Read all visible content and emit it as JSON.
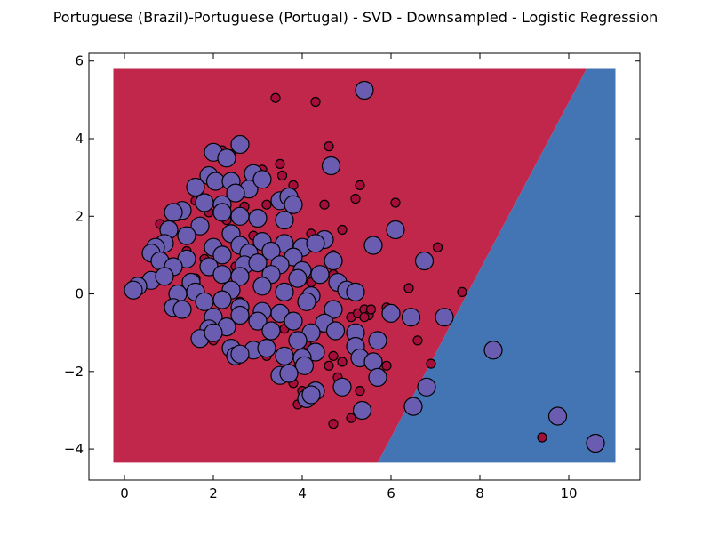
{
  "chart_data": {
    "type": "scatter",
    "title": "Portuguese (Brazil)-Portuguese (Portugal) - SVD - Downsampled - Logistic Regression",
    "xlabel": "",
    "ylabel": "",
    "xlim": [
      -0.8,
      11.6
    ],
    "ylim": [
      -4.8,
      6.2
    ],
    "xticks": [
      "0",
      "2",
      "4",
      "6",
      "8",
      "10"
    ],
    "yticks": [
      "−4",
      "−2",
      "0",
      "2",
      "4",
      "6"
    ],
    "grid": false,
    "colors": {
      "region_red": "#c0274a",
      "region_blue": "#4374b3",
      "point_small": "#a50e3a",
      "point_large": "#6a5cb0"
    },
    "decision_region": {
      "x_range": [
        -0.25,
        11.05
      ],
      "y_range": [
        -4.35,
        5.8
      ],
      "boundary_top_x": 10.4,
      "boundary_bottom_x": 5.7
    },
    "series": [
      {
        "class": "small-red",
        "points": [
          [
            3.4,
            5.05
          ],
          [
            4.3,
            4.95
          ],
          [
            4.6,
            3.8
          ],
          [
            3.1,
            3.2
          ],
          [
            2.2,
            3.7
          ],
          [
            2.4,
            3.6
          ],
          [
            3.5,
            3.35
          ],
          [
            3.55,
            3.05
          ],
          [
            3.8,
            2.8
          ],
          [
            5.3,
            2.8
          ],
          [
            4.5,
            2.3
          ],
          [
            6.1,
            2.35
          ],
          [
            5.2,
            2.45
          ],
          [
            3.2,
            2.3
          ],
          [
            2.7,
            2.25
          ],
          [
            1.9,
            2.1
          ],
          [
            1.6,
            2.4
          ],
          [
            1.2,
            2.0
          ],
          [
            0.8,
            1.8
          ],
          [
            4.2,
            1.55
          ],
          [
            4.9,
            1.65
          ],
          [
            4.7,
            1.0
          ],
          [
            0.7,
            1.0
          ],
          [
            1.8,
            0.9
          ],
          [
            1.9,
            0.6
          ],
          [
            2.5,
            0.7
          ],
          [
            1.6,
            0.4
          ],
          [
            0.6,
            0.45
          ],
          [
            4.2,
            0.3
          ],
          [
            4.7,
            0.5
          ],
          [
            6.4,
            0.15
          ],
          [
            7.05,
            1.2
          ],
          [
            7.6,
            0.05
          ],
          [
            5.1,
            -0.6
          ],
          [
            5.25,
            -0.5
          ],
          [
            5.4,
            -0.4
          ],
          [
            5.5,
            -0.55
          ],
          [
            5.55,
            -0.4
          ],
          [
            5.9,
            -0.35
          ],
          [
            5.4,
            -0.6
          ],
          [
            5.2,
            -0.9
          ],
          [
            6.6,
            -1.2
          ],
          [
            6.9,
            -1.8
          ],
          [
            5.9,
            -1.85
          ],
          [
            5.3,
            -1.5
          ],
          [
            4.7,
            -1.6
          ],
          [
            4.9,
            -1.75
          ],
          [
            4.6,
            -1.85
          ],
          [
            4.8,
            -2.15
          ],
          [
            3.8,
            -2.3
          ],
          [
            4.0,
            -2.5
          ],
          [
            5.3,
            -2.5
          ],
          [
            3.9,
            -2.85
          ],
          [
            5.1,
            -3.2
          ],
          [
            4.7,
            -3.35
          ],
          [
            9.4,
            -3.7
          ],
          [
            2.1,
            -0.8
          ],
          [
            1.3,
            -0.3
          ],
          [
            2.6,
            -0.2
          ],
          [
            3.0,
            0.2
          ],
          [
            3.6,
            -0.9
          ],
          [
            4.1,
            -1.3
          ],
          [
            2.9,
            1.5
          ],
          [
            2.3,
            1.9
          ],
          [
            3.4,
            0.9
          ],
          [
            1.4,
            1.1
          ],
          [
            2.0,
            -1.2
          ],
          [
            3.2,
            -1.6
          ],
          [
            3.9,
            -1.9
          ],
          [
            4.4,
            -0.9
          ]
        ]
      },
      {
        "class": "large-purple",
        "points": [
          [
            5.4,
            5.25
          ],
          [
            2.6,
            3.85
          ],
          [
            2.0,
            3.65
          ],
          [
            2.3,
            3.5
          ],
          [
            1.9,
            3.05
          ],
          [
            2.9,
            3.1
          ],
          [
            2.05,
            2.9
          ],
          [
            2.4,
            2.9
          ],
          [
            1.6,
            2.75
          ],
          [
            2.8,
            2.7
          ],
          [
            3.1,
            2.95
          ],
          [
            4.65,
            3.3
          ],
          [
            2.5,
            2.6
          ],
          [
            3.5,
            2.4
          ],
          [
            3.7,
            2.5
          ],
          [
            3.8,
            2.3
          ],
          [
            2.2,
            2.3
          ],
          [
            1.8,
            2.35
          ],
          [
            2.2,
            2.1
          ],
          [
            1.3,
            2.15
          ],
          [
            1.1,
            2.1
          ],
          [
            2.6,
            2.0
          ],
          [
            3.0,
            1.95
          ],
          [
            3.6,
            1.9
          ],
          [
            6.1,
            1.65
          ],
          [
            5.6,
            1.25
          ],
          [
            1.0,
            1.65
          ],
          [
            1.7,
            1.75
          ],
          [
            1.4,
            1.5
          ],
          [
            2.4,
            1.55
          ],
          [
            3.1,
            1.35
          ],
          [
            3.6,
            1.3
          ],
          [
            4.0,
            1.2
          ],
          [
            4.5,
            1.4
          ],
          [
            4.3,
            1.3
          ],
          [
            0.9,
            1.3
          ],
          [
            0.7,
            1.2
          ],
          [
            2.0,
            1.2
          ],
          [
            2.6,
            1.25
          ],
          [
            3.3,
            1.1
          ],
          [
            0.6,
            1.05
          ],
          [
            1.4,
            0.9
          ],
          [
            2.2,
            1.0
          ],
          [
            2.8,
            1.05
          ],
          [
            3.8,
            0.95
          ],
          [
            4.7,
            0.85
          ],
          [
            6.75,
            0.85
          ],
          [
            0.8,
            0.85
          ],
          [
            1.1,
            0.7
          ],
          [
            1.9,
            0.7
          ],
          [
            2.7,
            0.75
          ],
          [
            3.0,
            0.8
          ],
          [
            3.5,
            0.75
          ],
          [
            4.0,
            0.6
          ],
          [
            4.4,
            0.5
          ],
          [
            0.6,
            0.35
          ],
          [
            0.9,
            0.45
          ],
          [
            1.5,
            0.3
          ],
          [
            2.2,
            0.5
          ],
          [
            2.6,
            0.45
          ],
          [
            3.3,
            0.5
          ],
          [
            3.9,
            0.4
          ],
          [
            4.8,
            0.3
          ],
          [
            0.3,
            0.2
          ],
          [
            0.2,
            0.1
          ],
          [
            1.2,
            0.0
          ],
          [
            1.6,
            0.05
          ],
          [
            2.4,
            0.1
          ],
          [
            3.1,
            0.2
          ],
          [
            3.6,
            0.05
          ],
          [
            4.2,
            -0.05
          ],
          [
            5.0,
            0.1
          ],
          [
            5.2,
            0.05
          ],
          [
            1.1,
            -0.35
          ],
          [
            1.3,
            -0.4
          ],
          [
            1.8,
            -0.2
          ],
          [
            2.2,
            -0.15
          ],
          [
            2.6,
            -0.35
          ],
          [
            3.1,
            -0.45
          ],
          [
            3.5,
            -0.5
          ],
          [
            4.1,
            -0.2
          ],
          [
            4.7,
            -0.4
          ],
          [
            6.0,
            -0.5
          ],
          [
            6.45,
            -0.6
          ],
          [
            7.2,
            -0.6
          ],
          [
            2.0,
            -0.6
          ],
          [
            2.6,
            -0.55
          ],
          [
            3.0,
            -0.7
          ],
          [
            3.8,
            -0.7
          ],
          [
            4.5,
            -0.75
          ],
          [
            1.9,
            -0.9
          ],
          [
            2.3,
            -0.85
          ],
          [
            3.3,
            -0.95
          ],
          [
            4.2,
            -1.0
          ],
          [
            4.75,
            -0.95
          ],
          [
            5.2,
            -1.0
          ],
          [
            1.7,
            -1.15
          ],
          [
            2.0,
            -1.0
          ],
          [
            3.9,
            -1.2
          ],
          [
            5.7,
            -1.2
          ],
          [
            2.4,
            -1.4
          ],
          [
            2.9,
            -1.45
          ],
          [
            3.2,
            -1.4
          ],
          [
            4.3,
            -1.5
          ],
          [
            5.2,
            -1.35
          ],
          [
            2.5,
            -1.6
          ],
          [
            3.6,
            -1.6
          ],
          [
            4.0,
            -1.65
          ],
          [
            5.3,
            -1.65
          ],
          [
            5.6,
            -1.75
          ],
          [
            2.6,
            -1.55
          ],
          [
            4.05,
            -1.85
          ],
          [
            3.5,
            -2.1
          ],
          [
            3.7,
            -2.05
          ],
          [
            5.7,
            -2.15
          ],
          [
            4.3,
            -2.5
          ],
          [
            4.9,
            -2.4
          ],
          [
            6.8,
            -2.4
          ],
          [
            4.1,
            -2.7
          ],
          [
            4.2,
            -2.6
          ],
          [
            6.5,
            -2.9
          ],
          [
            5.35,
            -3.0
          ],
          [
            8.3,
            -1.45
          ],
          [
            9.75,
            -3.15
          ],
          [
            10.6,
            -3.85
          ]
        ]
      }
    ]
  }
}
